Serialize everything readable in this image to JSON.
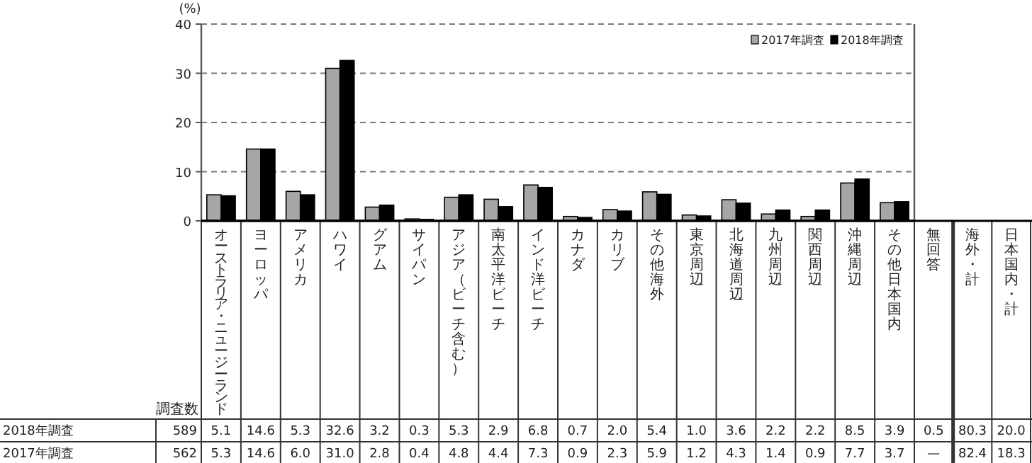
{
  "chart_data": [
    {
      "type": "bar",
      "categories": [
        "オーストラリア・ニュージーランド",
        "ヨーロッパ",
        "アメリカ",
        "ハワイ",
        "グアム",
        "サイパン",
        "アジア（ビーチ含む）",
        "南太平洋ビーチ",
        "インド洋ビーチ",
        "カナダ",
        "カリブ",
        "その他海外",
        "東京周辺",
        "北海道周辺",
        "九州周辺",
        "関西周辺",
        "沖縄周辺",
        "その他日本国内"
      ],
      "series": [
        {
          "name": "2017年調査",
          "color": "#a6a6a6",
          "values": [
            5.3,
            14.6,
            6.0,
            31.0,
            2.8,
            0.4,
            4.8,
            4.4,
            7.3,
            0.9,
            2.3,
            5.9,
            1.2,
            4.3,
            1.4,
            0.9,
            7.7,
            3.7
          ],
          "value_labels": [
            "5.3",
            "14.6",
            "6.0",
            "31.0",
            "2.8",
            "0.4",
            "4.8",
            "4.4",
            "7.3",
            "0.9",
            "2.3",
            "5.9",
            "1.2",
            "4.3",
            "1.4",
            "0.9",
            "7.7",
            "3.7"
          ]
        },
        {
          "name": "2018年調査",
          "color": "#000000",
          "values": [
            5.1,
            14.6,
            5.3,
            32.6,
            3.2,
            0.3,
            5.3,
            2.9,
            6.8,
            0.7,
            2.0,
            5.4,
            1.0,
            3.6,
            2.2,
            2.2,
            8.5,
            3.9
          ],
          "value_labels": [
            "5.1",
            "14.6",
            "5.3",
            "32.6",
            "3.2",
            "0.3",
            "5.3",
            "2.9",
            "6.8",
            "0.7",
            "2.0",
            "5.4",
            "1.0",
            "3.6",
            "2.2",
            "2.2",
            "8.5",
            "3.9"
          ]
        }
      ],
      "ylabel": "(%)",
      "ylim": [
        0,
        40
      ],
      "yticks": [
        0,
        10,
        20,
        30,
        40
      ],
      "grid": "y",
      "legend": "top right",
      "annotations": [
        "調査数",
        "589",
        "562"
      ]
    },
    {
      "type": "other",
      "categories": [
        "無回答",
        "海外・計",
        "日本国内・計"
      ],
      "series": [
        {
          "values": [
            null,
            82.4,
            18.3
          ],
          "value_labels": [
            "—",
            "82.4",
            "18.3"
          ]
        },
        {
          "values": [
            0.5,
            80.3,
            20.0
          ],
          "value_labels": [
            "0.5",
            "80.3",
            "20.0"
          ]
        }
      ]
    }
  ]
}
